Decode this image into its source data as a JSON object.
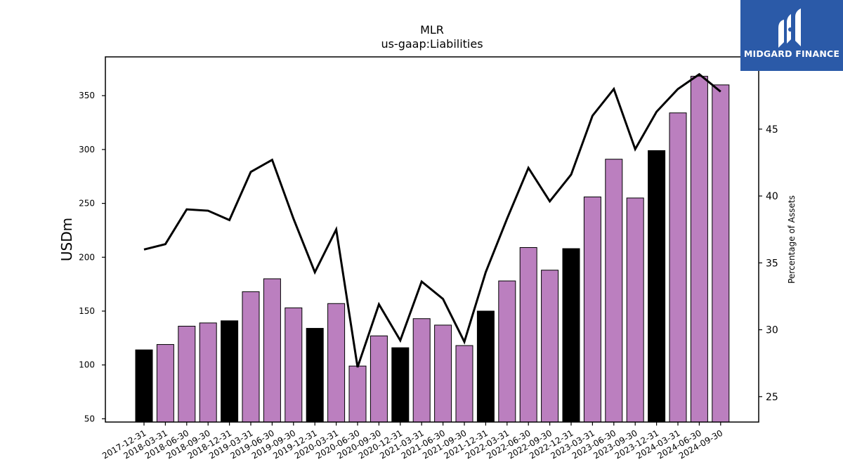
{
  "chart_data": {
    "type": "bar",
    "title": "MLR",
    "subtitle": "us-gaap:Liabilities",
    "ylabel": "USDm",
    "y2label": "Percentage of Assets",
    "ylim": [
      47,
      386
    ],
    "y2lim": [
      23.1,
      50.4
    ],
    "yticks": [
      50,
      100,
      150,
      200,
      250,
      300,
      350
    ],
    "y2ticks": [
      25,
      30,
      35,
      40,
      45
    ],
    "categories": [
      "2017-12-31",
      "2018-03-31",
      "2018-06-30",
      "2018-09-30",
      "2018-12-31",
      "2019-03-31",
      "2019-06-30",
      "2019-09-30",
      "2019-12-31",
      "2020-03-31",
      "2020-06-30",
      "2020-09-30",
      "2020-12-31",
      "2021-03-31",
      "2021-06-30",
      "2021-09-30",
      "2021-12-31",
      "2022-03-31",
      "2022-06-30",
      "2022-09-30",
      "2022-12-31",
      "2023-03-31",
      "2023-06-30",
      "2023-09-30",
      "2023-12-31",
      "2024-03-31",
      "2024-06-30",
      "2024-09-30"
    ],
    "series": [
      {
        "type": "bar",
        "axis": "left",
        "values": [
          114,
          119,
          136,
          139,
          141,
          168,
          180,
          153,
          134,
          157,
          99,
          127,
          116,
          143,
          137,
          118,
          150,
          178,
          209,
          188,
          208,
          256,
          291,
          255,
          299,
          334,
          368,
          360
        ],
        "colors": [
          "#000000",
          "#bb7fbf",
          "#bb7fbf",
          "#bb7fbf",
          "#000000",
          "#bb7fbf",
          "#bb7fbf",
          "#bb7fbf",
          "#000000",
          "#bb7fbf",
          "#bb7fbf",
          "#bb7fbf",
          "#000000",
          "#bb7fbf",
          "#bb7fbf",
          "#bb7fbf",
          "#000000",
          "#bb7fbf",
          "#bb7fbf",
          "#bb7fbf",
          "#000000",
          "#bb7fbf",
          "#bb7fbf",
          "#bb7fbf",
          "#000000",
          "#bb7fbf",
          "#bb7fbf",
          "#bb7fbf"
        ]
      },
      {
        "type": "line",
        "axis": "right",
        "color": "#000000",
        "values": [
          36.0,
          36.4,
          39.0,
          38.9,
          38.2,
          41.8,
          42.7,
          38.3,
          34.3,
          37.5,
          27.2,
          31.9,
          29.2,
          33.6,
          32.3,
          29.1,
          34.3,
          38.3,
          42.1,
          39.6,
          41.6,
          46.0,
          48.0,
          43.5,
          46.3,
          48.0,
          49.1,
          47.8
        ]
      }
    ],
    "grid": false,
    "legend": "none"
  },
  "logo": {
    "text": "MIDGARD FINANCE"
  },
  "colors": {
    "bar_regular": "#bb7fbf",
    "bar_year_end": "#000000",
    "logo_bg": "#2b5aa8"
  }
}
